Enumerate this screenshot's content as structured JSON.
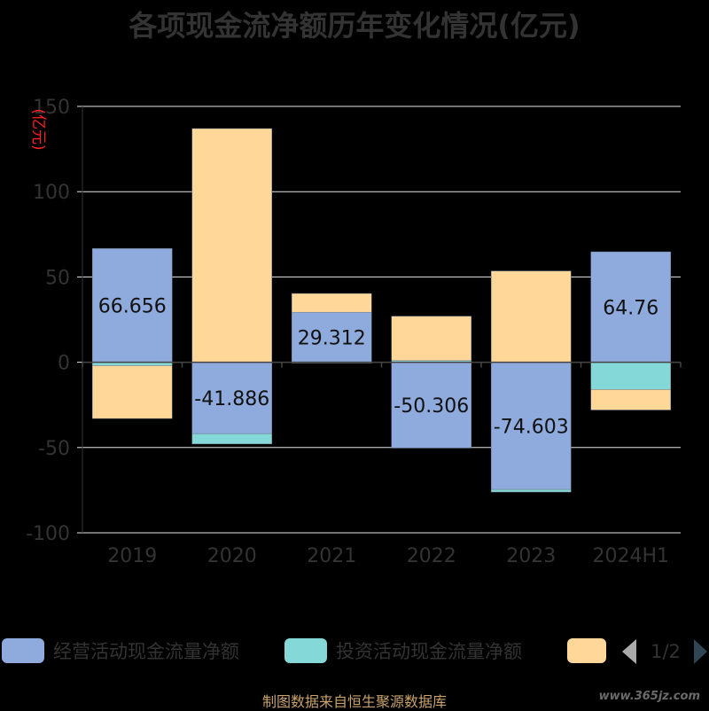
{
  "chart_data": {
    "type": "bar",
    "stacked": true,
    "title": "各项现金流净额历年变化情况(亿元)",
    "ylabel": "(亿元)",
    "ylim": [
      -100,
      150
    ],
    "yticks": [
      "150",
      "100",
      "50",
      "0",
      "-50",
      "-100"
    ],
    "categories": [
      "2019",
      "2020",
      "2021",
      "2022",
      "2023",
      "2024H1"
    ],
    "series": [
      {
        "name": "经营活动现金流量净额",
        "color": "#8faadc",
        "values": [
          66.656,
          -41.886,
          29.312,
          -50.306,
          -74.603,
          64.76
        ],
        "labels": [
          "66.656",
          "-41.886",
          "29.312",
          "-50.306",
          "-74.603",
          "64.76"
        ]
      },
      {
        "name": "投资活动现金流量净额",
        "color": "#84d8d8",
        "values": [
          -2,
          -6,
          -0.5,
          1,
          -1.5,
          -16
        ]
      },
      {
        "name": "",
        "color": "#ffd899",
        "values": [
          -31,
          137,
          11,
          26,
          53.5,
          -12
        ]
      }
    ],
    "legend": {
      "placement": "bottom",
      "page": "1/2"
    },
    "grid": true
  },
  "source_text": "制图数据来自恒生聚源数据库",
  "watermark": "www.365jz.com"
}
